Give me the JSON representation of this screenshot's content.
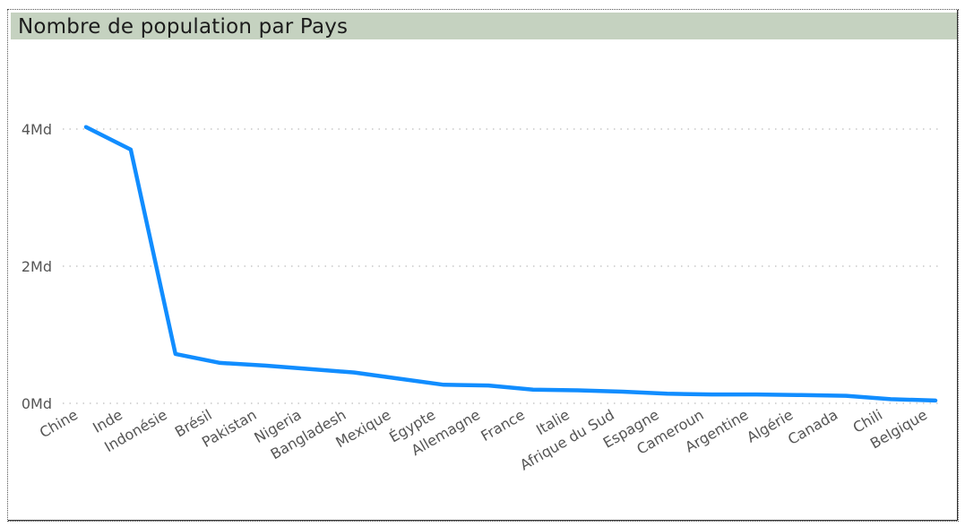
{
  "chart_data": {
    "type": "line",
    "title": "Nombre de population par Pays",
    "categories": [
      "Chine",
      "Inde",
      "Indonésie",
      "Brésil",
      "Pakistan",
      "Nigeria",
      "Bangladesh",
      "Mexique",
      "Égypte",
      "Allemagne",
      "France",
      "Italie",
      "Afrique du Sud",
      "Espagne",
      "Cameroun",
      "Argentine",
      "Algérie",
      "Canada",
      "Chili",
      "Belgique"
    ],
    "series": [
      {
        "values": [
          4.03,
          3.7,
          0.72,
          0.59,
          0.55,
          0.5,
          0.45,
          0.36,
          0.27,
          0.26,
          0.2,
          0.19,
          0.17,
          0.14,
          0.13,
          0.13,
          0.12,
          0.11,
          0.06,
          0.04
        ],
        "color": "#118DFF"
      }
    ],
    "y_ticks": [
      {
        "value": 0,
        "label": "0Md"
      },
      {
        "value": 2,
        "label": "2Md"
      },
      {
        "value": 4,
        "label": "4Md"
      }
    ],
    "ylim": [
      0,
      4.9
    ],
    "grid": "horizontal dotted",
    "legend": "none"
  }
}
